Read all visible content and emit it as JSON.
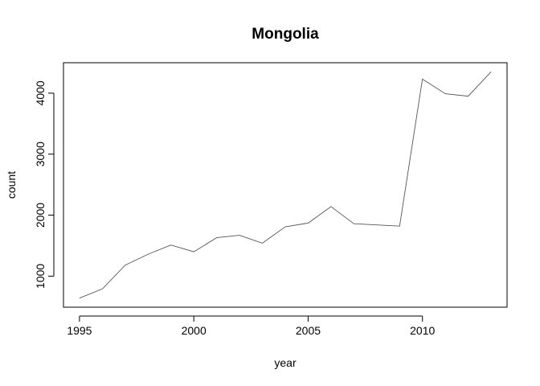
{
  "chart_data": {
    "type": "line",
    "title": "Mongolia",
    "xlabel": "year",
    "ylabel": "count",
    "x": [
      1995,
      1996,
      1997,
      1998,
      1999,
      2000,
      2001,
      2002,
      2003,
      2004,
      2005,
      2006,
      2007,
      2008,
      2009,
      2010,
      2011,
      2012,
      2013
    ],
    "series": [
      {
        "values": [
          640,
          790,
          1180,
          1360,
          1510,
          1400,
          1630,
          1670,
          1540,
          1810,
          1870,
          2140,
          1860,
          1840,
          1820,
          4230,
          3990,
          3950,
          4350
        ]
      }
    ],
    "xticks": [
      1995,
      2000,
      2005,
      2010
    ],
    "yticks": [
      1000,
      2000,
      3000,
      4000
    ],
    "xlim": [
      1994.3,
      2013.7
    ],
    "ylim": [
      491,
      4499
    ],
    "grid": false,
    "line_color": "#555555"
  }
}
